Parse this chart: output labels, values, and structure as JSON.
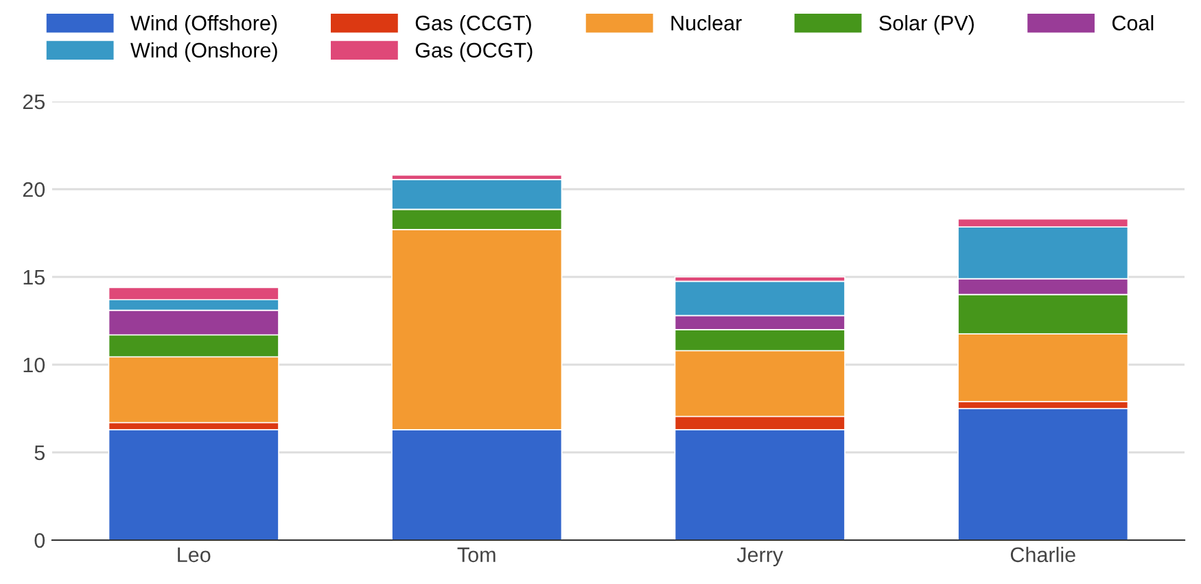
{
  "chart_data": {
    "type": "bar",
    "stacked": true,
    "categories": [
      "Leo",
      "Tom",
      "Jerry",
      "Charlie"
    ],
    "series": [
      {
        "name": "Wind (Offshore)",
        "color": "#3366cc",
        "values": [
          6.3,
          6.3,
          6.3,
          7.5
        ]
      },
      {
        "name": "Gas (CCGT)",
        "color": "#dc3912",
        "values": [
          0.4,
          0,
          0.75,
          0.4
        ]
      },
      {
        "name": "Nuclear",
        "color": "#f39a31",
        "values": [
          3.75,
          11.4,
          3.75,
          3.85
        ]
      },
      {
        "name": "Solar (PV)",
        "color": "#46961b",
        "values": [
          1.25,
          1.15,
          1.2,
          2.25
        ]
      },
      {
        "name": "Coal",
        "color": "#993c97",
        "values": [
          1.4,
          null,
          0.8,
          0.9
        ]
      },
      {
        "name": "Wind (Onshore)",
        "color": "#3899c6",
        "values": [
          0.6,
          1.7,
          1.95,
          2.95
        ]
      },
      {
        "name": "Gas (OCGT)",
        "color": "#df4878",
        "values": [
          0.7,
          0.25,
          0.25,
          0.45
        ]
      }
    ],
    "ylim": [
      0,
      25
    ],
    "yticks": [
      0,
      5,
      10,
      15,
      20,
      25
    ],
    "grid": "y",
    "legend": "top"
  }
}
